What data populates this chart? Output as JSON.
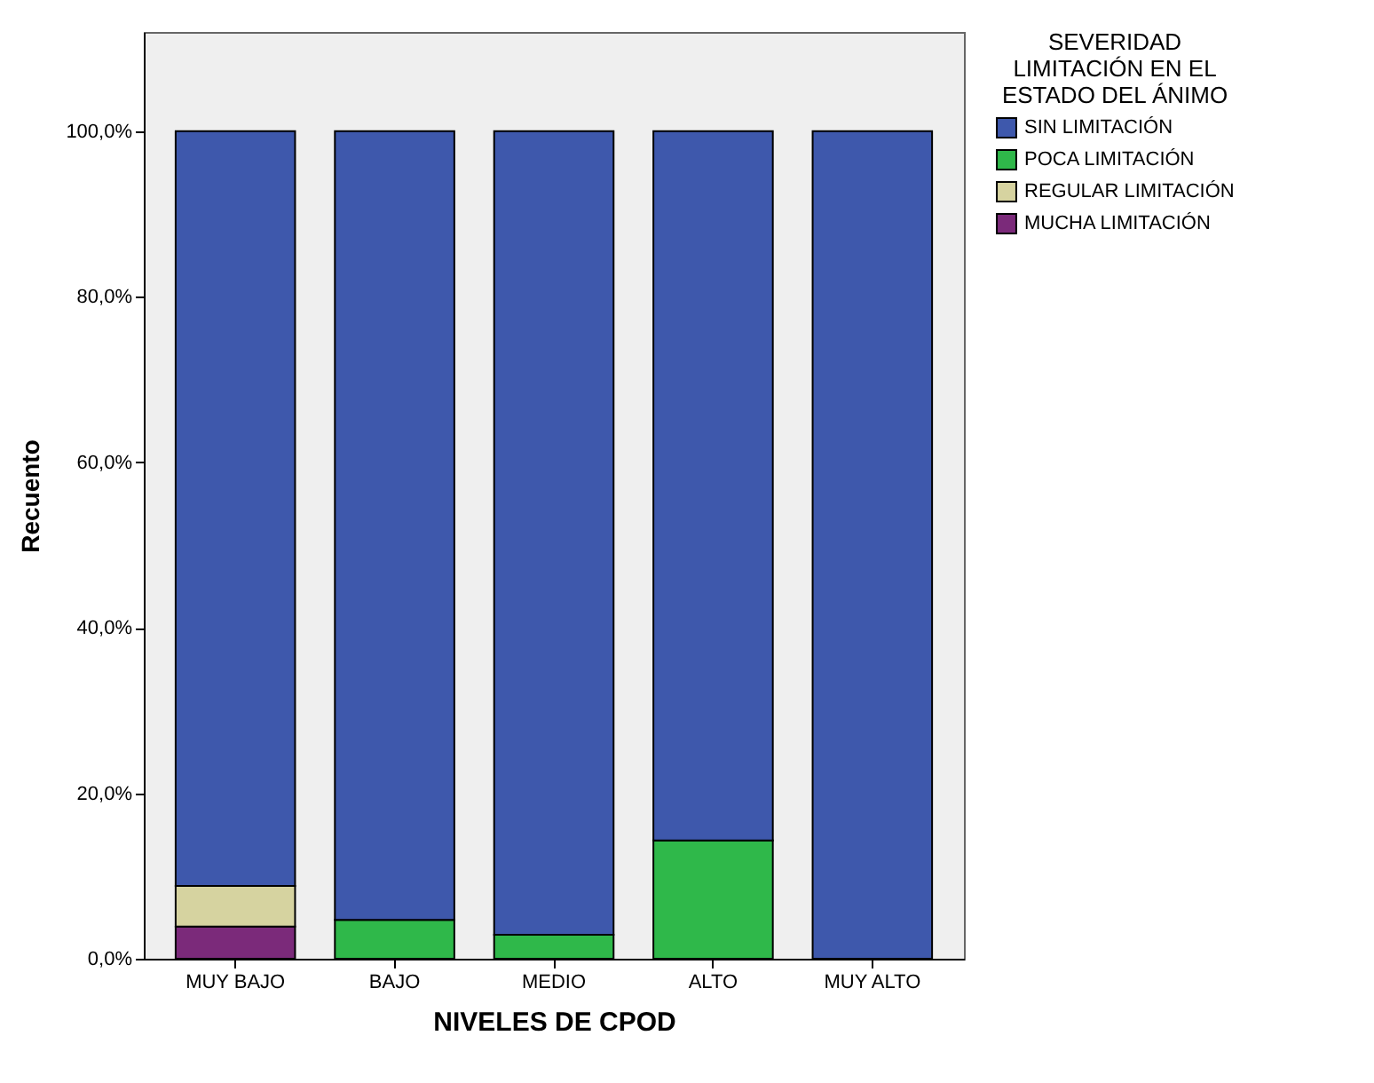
{
  "chart_data": {
    "type": "bar",
    "stacked": true,
    "xlabel": "NIVELES DE CPOD",
    "ylabel": "Recuento",
    "legend_title": "SEVERIDAD\nLIMITACIÓN EN EL\nESTADO DEL ÁNIMO",
    "legend": "top right",
    "categories": [
      "MUY BAJO",
      "BAJO",
      "MEDIO",
      "ALTO",
      "MUY ALTO"
    ],
    "series": [
      {
        "name": "MUCHA LIMITACIÓN",
        "color": "#7b2a7a",
        "values": [
          3.9,
          0,
          0,
          0,
          0
        ]
      },
      {
        "name": "REGULAR LIMITACIÓN",
        "color": "#d6d3a0",
        "values": [
          4.9,
          0,
          0,
          0,
          0
        ]
      },
      {
        "name": "POCA LIMITACIÓN",
        "color": "#2fb84a",
        "values": [
          0,
          4.7,
          2.9,
          14.3,
          0
        ]
      },
      {
        "name": "SIN LIMITACIÓN",
        "color": "#3e58ac",
        "values": [
          91.2,
          95.3,
          97.1,
          85.7,
          100
        ]
      }
    ],
    "ylim": [
      0,
      112
    ],
    "yticks": [
      {
        "value": 0,
        "label": "0,0%"
      },
      {
        "value": 20,
        "label": "20,0%"
      },
      {
        "value": 40,
        "label": "40,0%"
      },
      {
        "value": 60,
        "label": "60,0%"
      },
      {
        "value": 80,
        "label": "80,0%"
      },
      {
        "value": 100,
        "label": "100,0%"
      }
    ]
  }
}
